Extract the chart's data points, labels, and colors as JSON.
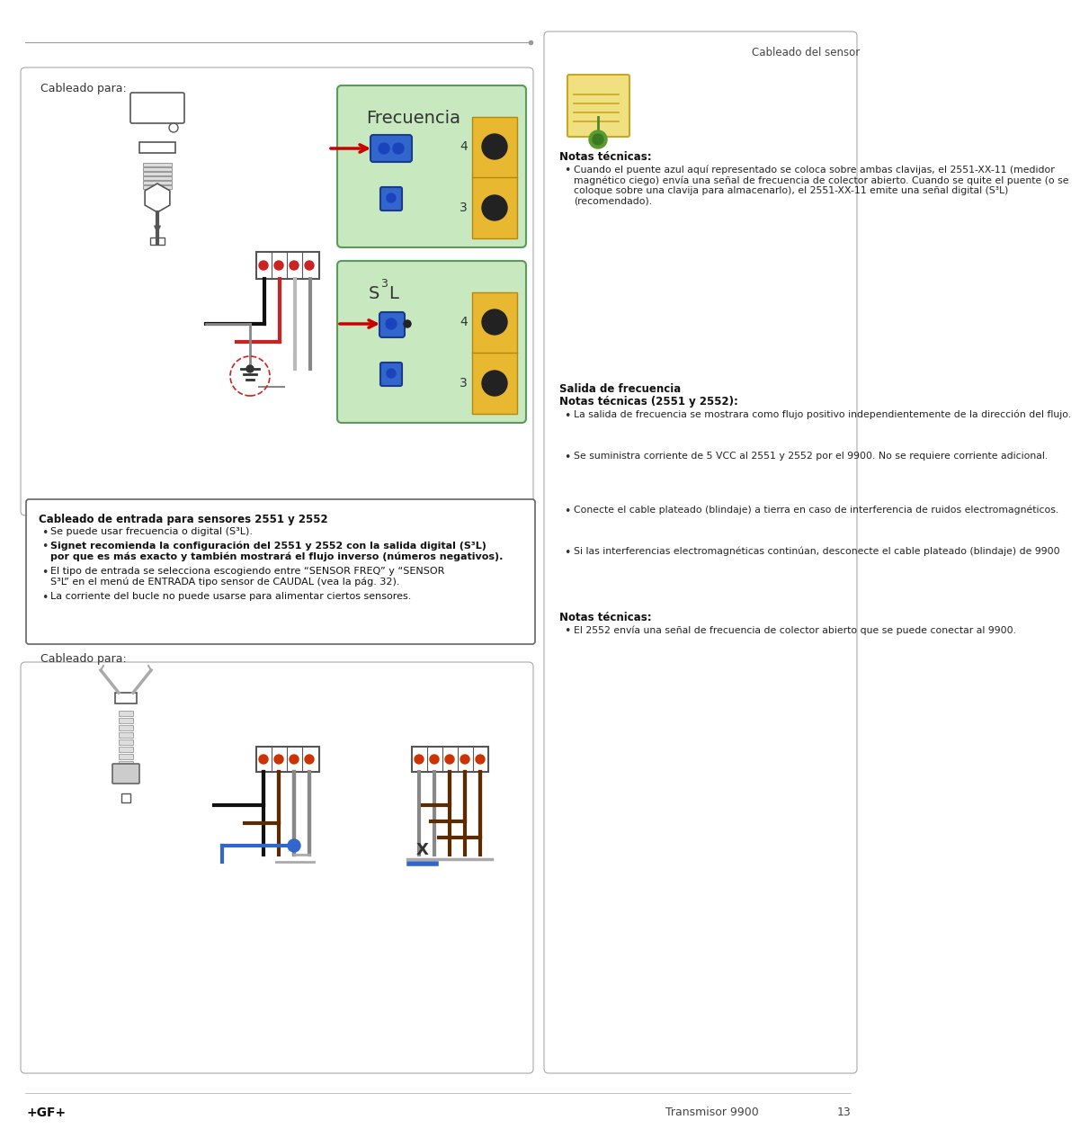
{
  "page_title_right": "Cableado del sensor",
  "header_line_color": "#999999",
  "bg_color": "#ffffff",
  "green_bg": "#c8e8c0",
  "yellow_bg": "#e8b830",
  "blue_connector": "#3355bb",
  "red_arrow": "#cc0000",
  "footer_left": "+GF+",
  "footer_center": "Transmisor 9900",
  "footer_page": "13",
  "cableado_para": "Cableado para:",
  "frecuencia_label": "Frecuencia",
  "section_title": "Cableado de entrada para sensores 2551 y 2552",
  "bullet1": "Se puede usar frecuencia o digital (S³L).",
  "bullet2_bold": "Signet recomienda la configuración del 2551 y 2552 con la salida digital (S³L) por que es más exacto y también mostrará el flujo inverso (números negativos).",
  "bullet3": "El tipo de entrada se selecciona escogiendo entre “SENSOR FREQ” y “SENSOR S³L” en el menú de ENTRADA tipo sensor de CAUDAL (vea la pág. 32).",
  "bullet4": "La corriente del bucle no puede usarse para alimentar ciertos sensores.",
  "right_notas1_title": "Notas técnicas:",
  "right_notas1_b1": "Cuando el puente azul aquí representado se coloca sobre ambas clavijas, el 2551-XX-11 (medidor magnético ciego) envía una señal de frecuencia de colector abierto. Cuando se quite el puente (o se coloque sobre una clavija para almacenarlo), el 2551-XX-11 emite una señal digital (S³L) (recomendado).",
  "right_salida_line1": "Salida de frecuencia",
  "right_salida_line2": "Notas técnicas (2551 y 2552):",
  "right_salida_b1": "La salida de frecuencia se mostrara como flujo positivo independientemente de la dirección del flujo.",
  "right_salida_b2": "Se suministra corriente de 5 VCC al 2551 y 2552 por el 9900. No se requiere corriente adicional.",
  "right_salida_b3": "Conecte el cable plateado (blindaje) a tierra en caso de interferencia de ruidos electromagnéticos.",
  "right_salida_b4": "Si las interferencias electromagnéticas continúan, desconecte el cable plateado (blindaje) de 9900",
  "right_notas2_title": "Notas técnicas:",
  "right_notas2_b1": "El 2552 envía una señal de frecuencia de colector abierto que se puede conectar al 9900."
}
